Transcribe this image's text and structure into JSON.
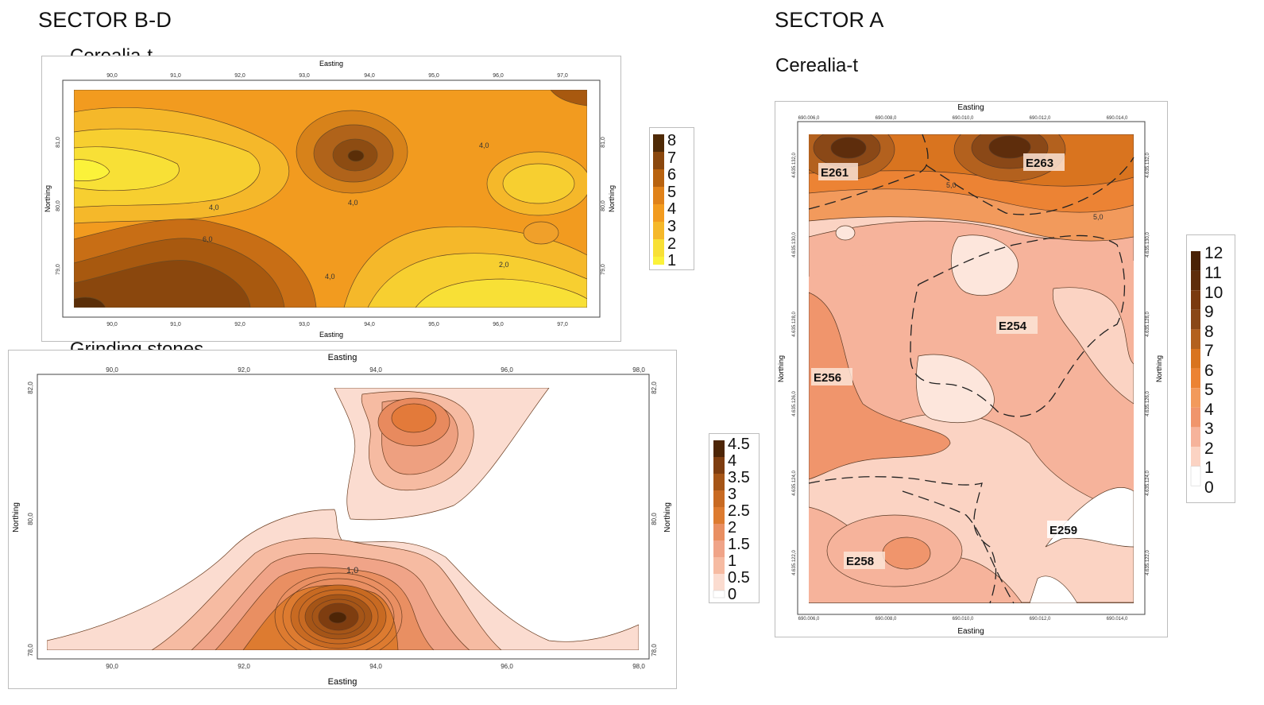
{
  "sector_bd": {
    "title": "SECTOR B-D",
    "cerealia": {
      "title": "Cerealia-t",
      "axis_x": "Easting",
      "axis_y": "Northing",
      "x_ticks": [
        "90,0",
        "91,0",
        "92,0",
        "93,0",
        "94,0",
        "95,0",
        "96,0",
        "97,0"
      ],
      "y_ticks": [
        "81,0",
        "80,0",
        "79,0"
      ],
      "contour_labels": [
        "4,0",
        "4,0",
        "4,0",
        "6,0",
        "4,0",
        "2,0"
      ],
      "legend": [
        "8",
        "7",
        "6",
        "5",
        "4",
        "3",
        "2",
        "1"
      ]
    },
    "grinding": {
      "title": "Grinding stones",
      "axis_x": "Easting",
      "axis_y": "Northing",
      "x_ticks": [
        "90,0",
        "92,0",
        "94,0",
        "96,0",
        "98,0"
      ],
      "y_ticks": [
        "82,0",
        "80,0",
        "78,0"
      ],
      "contour_labels": [
        "1,0"
      ],
      "legend": [
        "4.5",
        "4",
        "3.5",
        "3",
        "2.5",
        "2",
        "1.5",
        "1",
        "0.5",
        "0"
      ]
    }
  },
  "sector_a": {
    "title": "SECTOR A",
    "cerealia": {
      "title": "Cerealia-t",
      "axis_x": "Easting",
      "axis_y": "Northing",
      "x_ticks": [
        "690.006,0",
        "690.008,0",
        "690.010,0",
        "690.012,0",
        "690.014,0"
      ],
      "y_ticks": [
        "4.635.132,0",
        "4.635.130,0",
        "4.635.128,0",
        "4.635.126,0",
        "4.635.124,0",
        "4.635.122,0"
      ],
      "contour_labels": [
        "5,0",
        "5,0"
      ],
      "structures": [
        "E261",
        "E263",
        "E254",
        "E256",
        "E259",
        "E258"
      ],
      "legend": [
        "12",
        "11",
        "10",
        "9",
        "8",
        "7",
        "6",
        "5",
        "4",
        "3",
        "2",
        "1",
        "0"
      ]
    }
  }
}
